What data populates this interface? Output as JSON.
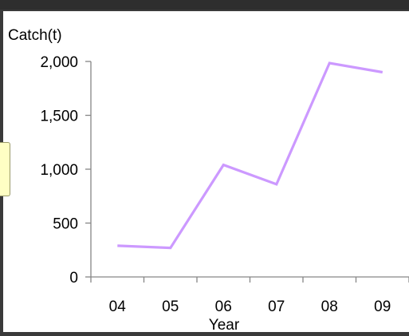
{
  "chart_data": {
    "type": "line",
    "title": "",
    "xlabel": "Year",
    "ylabel": "Catch(t)",
    "categories": [
      "04",
      "05",
      "06",
      "07",
      "08",
      "09"
    ],
    "series": [
      {
        "values": [
          290,
          270,
          1040,
          860,
          1985,
          1900
        ]
      }
    ],
    "ylim": [
      0,
      2000
    ],
    "yticks": [
      0,
      500,
      1000,
      1500,
      2000
    ],
    "ytick_labels": [
      "0",
      "500",
      "1,000",
      "1,500",
      "2,000"
    ],
    "grid": false,
    "legend": "none",
    "line_color": "#cc99ff"
  }
}
